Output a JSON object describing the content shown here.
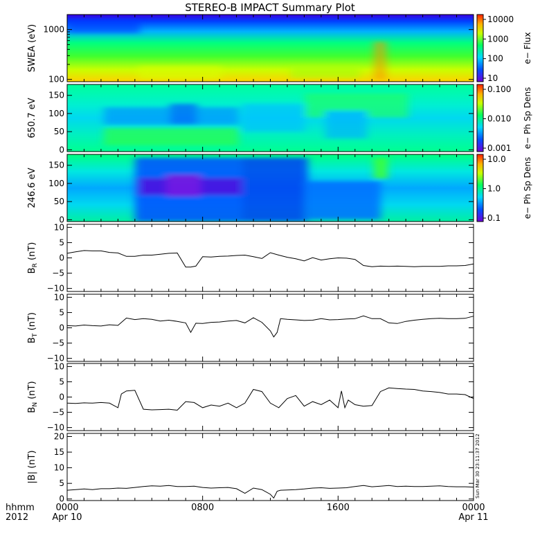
{
  "title": "STEREO-B IMPACT Summary Plot",
  "timestamp": "Sun Mar 30 23:11:37 2012",
  "time_axis": {
    "corner_labels": [
      "hhmm",
      "2012"
    ],
    "ticks": [
      {
        "hhmm": "0000",
        "date": "Apr 10",
        "hour": 0
      },
      {
        "hhmm": "0800",
        "date": "",
        "hour": 8
      },
      {
        "hhmm": "1600",
        "date": "",
        "hour": 16
      },
      {
        "hhmm": "0000",
        "date": "Apr 11",
        "hour": 24
      }
    ]
  },
  "chart_data": [
    {
      "type": "heatmap",
      "ylabel": "SWEA (eV)",
      "yscale": "log",
      "ylim": [
        90,
        2000
      ],
      "yticks": [
        {
          "v": 100,
          "label": "100"
        },
        {
          "v": 1000,
          "label": "1000"
        }
      ],
      "colorbar": {
        "label": "e− Flux",
        "scale": "log",
        "ticks": [
          "10",
          "100",
          "1000",
          "10000"
        ]
      }
    },
    {
      "type": "heatmap",
      "ylabel": "650.7 eV",
      "ylim": [
        -5,
        180
      ],
      "yticks": [
        {
          "v": 0,
          "label": "0"
        },
        {
          "v": 50,
          "label": "50"
        },
        {
          "v": 100,
          "label": "100"
        },
        {
          "v": 150,
          "label": "150"
        }
      ],
      "colorbar": {
        "label": "e− Ph Sp Dens",
        "scale": "log",
        "ticks": [
          "0.001",
          "0.010",
          "0.100"
        ]
      }
    },
    {
      "type": "heatmap",
      "ylabel": "246.6 eV",
      "ylim": [
        -5,
        180
      ],
      "yticks": [
        {
          "v": 0,
          "label": "0"
        },
        {
          "v": 50,
          "label": "50"
        },
        {
          "v": 100,
          "label": "100"
        },
        {
          "v": 150,
          "label": "150"
        }
      ],
      "colorbar": {
        "label": "e− Ph Sp Dens",
        "scale": "log",
        "ticks": [
          "0.1",
          "1.0",
          "10.0"
        ]
      }
    },
    {
      "type": "line",
      "ylabel": "B_R (nT)",
      "ylim": [
        -11,
        11
      ],
      "yticks": [
        {
          "v": -10,
          "label": "−10"
        },
        {
          "v": -5,
          "label": "−5"
        },
        {
          "v": 0,
          "label": "0"
        },
        {
          "v": 5,
          "label": "5"
        },
        {
          "v": 10,
          "label": "10"
        }
      ],
      "x": [
        0,
        0.5,
        1,
        1.5,
        2,
        2.5,
        3,
        3.5,
        4,
        4.5,
        5,
        5.5,
        6,
        6.5,
        7,
        7.3,
        7.6,
        8,
        8.5,
        9,
        9.5,
        10,
        10.5,
        11,
        11.5,
        12,
        12.5,
        13,
        13.5,
        14,
        14.5,
        15,
        15.5,
        16,
        16.5,
        17,
        17.5,
        18,
        18.5,
        19,
        19.5,
        20,
        20.5,
        21,
        21.5,
        22,
        22.5,
        23,
        23.5,
        24
      ],
      "values": [
        1.5,
        2,
        2.4,
        2.3,
        2.3,
        1.8,
        1.6,
        0.5,
        0.5,
        0.9,
        0.9,
        1.2,
        1.5,
        1.6,
        -3.0,
        -3.0,
        -2.7,
        0.4,
        0.3,
        0.5,
        0.6,
        0.8,
        0.9,
        0.4,
        -0.2,
        1.7,
        0.9,
        0.2,
        -0.3,
        -1.0,
        0.1,
        -0.7,
        -0.3,
        0,
        -0.1,
        -0.5,
        -2.5,
        -2.9,
        -2.7,
        -2.8,
        -2.7,
        -2.8,
        -2.9,
        -2.8,
        -2.8,
        -2.8,
        -2.6,
        -2.6,
        -2.5,
        -2.0
      ]
    },
    {
      "type": "line",
      "ylabel": "B_T (nT)",
      "ylim": [
        -11,
        11
      ],
      "yticks": [
        {
          "v": -10,
          "label": "−10"
        },
        {
          "v": -5,
          "label": "−5"
        },
        {
          "v": 0,
          "label": "0"
        },
        {
          "v": 5,
          "label": "5"
        },
        {
          "v": 10,
          "label": "10"
        }
      ],
      "x": [
        0,
        0.5,
        1,
        1.5,
        2,
        2.5,
        3,
        3.5,
        4,
        4.5,
        5,
        5.5,
        6,
        6.5,
        7,
        7.3,
        7.6,
        8,
        8.5,
        9,
        9.5,
        10,
        10.5,
        11,
        11.5,
        12,
        12.2,
        12.4,
        12.6,
        13,
        13.5,
        14,
        14.5,
        15,
        15.5,
        16,
        16.5,
        17,
        17.5,
        18,
        18.5,
        19,
        19.5,
        20,
        20.5,
        21,
        21.5,
        22,
        22.5,
        23,
        23.5,
        24
      ],
      "values": [
        0.7,
        0.6,
        0.9,
        0.7,
        0.6,
        1.0,
        0.8,
        3.2,
        2.7,
        3.0,
        2.8,
        2.2,
        2.5,
        2.1,
        1.6,
        -1.5,
        1.5,
        1.4,
        1.8,
        1.9,
        2.2,
        2.4,
        1.6,
        3.3,
        1.8,
        -1.0,
        -3.0,
        -1.5,
        3.0,
        2.8,
        2.6,
        2.4,
        2.5,
        3.0,
        2.6,
        2.7,
        2.9,
        3.0,
        3.9,
        3.0,
        3.0,
        1.6,
        1.4,
        2.1,
        2.5,
        2.8,
        3.0,
        3.1,
        3.0,
        3.0,
        3.1,
        3.8
      ]
    },
    {
      "type": "line",
      "ylabel": "B_N (nT)",
      "ylim": [
        -11,
        11
      ],
      "yticks": [
        {
          "v": -10,
          "label": "−10"
        },
        {
          "v": -5,
          "label": "−5"
        },
        {
          "v": 0,
          "label": "0"
        },
        {
          "v": 5,
          "label": "5"
        },
        {
          "v": 10,
          "label": "10"
        }
      ],
      "x": [
        0,
        0.5,
        1,
        1.5,
        2,
        2.5,
        3,
        3.2,
        3.5,
        4,
        4.5,
        5,
        5.5,
        6,
        6.5,
        7,
        7.5,
        8,
        8.5,
        9,
        9.5,
        10,
        10.5,
        11,
        11.5,
        12,
        12.5,
        13,
        13.5,
        14,
        14.5,
        15,
        15.5,
        16,
        16.2,
        16.4,
        16.6,
        17,
        17.5,
        18,
        18.5,
        19,
        19.5,
        20,
        20.5,
        21,
        21.5,
        22,
        22.5,
        23,
        23.5,
        24
      ],
      "values": [
        -2.0,
        -2.1,
        -1.9,
        -2.0,
        -1.8,
        -2.0,
        -3.5,
        1.0,
        2.0,
        2.2,
        -4.0,
        -4.2,
        -4.1,
        -4.0,
        -4.3,
        -1.5,
        -1.8,
        -3.5,
        -2.6,
        -3.0,
        -2.0,
        -3.5,
        -2.0,
        2.5,
        1.8,
        -2.0,
        -3.5,
        -0.5,
        0.5,
        -3.0,
        -1.5,
        -2.5,
        -1.0,
        -3.5,
        2.0,
        -3.5,
        -1.0,
        -2.5,
        -3.0,
        -2.8,
        1.8,
        3.0,
        2.8,
        2.6,
        2.5,
        2.0,
        1.8,
        1.5,
        1.0,
        1.0,
        0.8,
        -0.5
      ]
    },
    {
      "type": "line",
      "ylabel": "|B| (nT)",
      "ylim": [
        -0.5,
        21
      ],
      "yticks": [
        {
          "v": 0,
          "label": "0"
        },
        {
          "v": 5,
          "label": "5"
        },
        {
          "v": 10,
          "label": "10"
        },
        {
          "v": 15,
          "label": "15"
        },
        {
          "v": 20,
          "label": "20"
        }
      ],
      "x": [
        0,
        0.5,
        1,
        1.5,
        2,
        2.5,
        3,
        3.5,
        4,
        4.5,
        5,
        5.5,
        6,
        6.5,
        7,
        7.5,
        8,
        8.5,
        9,
        9.5,
        10,
        10.5,
        11,
        11.5,
        12,
        12.2,
        12.4,
        12.6,
        13,
        13.5,
        14,
        14.5,
        15,
        15.5,
        16,
        16.5,
        17,
        17.5,
        18,
        18.5,
        19,
        19.5,
        20,
        20.5,
        21,
        21.5,
        22,
        22.5,
        23,
        23.5,
        24
      ],
      "values": [
        2.8,
        3.0,
        3.2,
        3.0,
        3.3,
        3.3,
        3.5,
        3.4,
        3.7,
        4.0,
        4.2,
        4.1,
        4.3,
        4.0,
        4.0,
        4.1,
        3.7,
        3.5,
        3.6,
        3.7,
        3.3,
        1.8,
        3.5,
        3.0,
        1.5,
        0.3,
        2.5,
        2.8,
        2.9,
        3.0,
        3.2,
        3.5,
        3.6,
        3.4,
        3.5,
        3.6,
        4.0,
        4.3,
        3.9,
        4.1,
        4.3,
        4.0,
        4.1,
        4.0,
        4.0,
        4.1,
        4.2,
        4.0,
        3.9,
        3.9,
        3.8
      ]
    }
  ]
}
